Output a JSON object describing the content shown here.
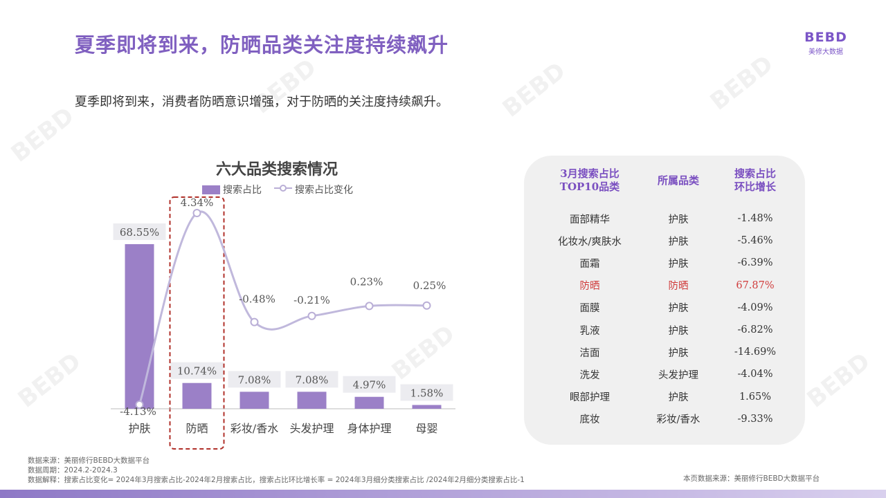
{
  "title": "夏季即将到来，防晒品类关注度持续飙升",
  "logo": {
    "mark": "BEBD",
    "sub": "美修大数据"
  },
  "intro": "夏季即将到来，消费者防晒意识增强，对于防晒的关注度持续飙升。",
  "chart_data": {
    "type": "bar",
    "title": "六大品类搜索情况",
    "categories": [
      "护肤",
      "防晒",
      "彩妆/香水",
      "头发护理",
      "身体护理",
      "母婴"
    ],
    "series": [
      {
        "name": "搜索占比",
        "type": "bar",
        "values": [
          68.55,
          10.74,
          7.08,
          7.08,
          4.97,
          1.58
        ],
        "labels": [
          "68.55%",
          "10.74%",
          "7.08%",
          "7.08%",
          "4.97%",
          "1.58%"
        ]
      },
      {
        "name": "搜索占比变化",
        "type": "line",
        "values": [
          -4.13,
          4.34,
          -0.48,
          -0.21,
          0.23,
          0.25
        ],
        "labels": [
          "-4.13%",
          "4.34%",
          "-0.48%",
          "-0.21%",
          "0.23%",
          "0.25%"
        ]
      }
    ],
    "highlight_category": "防晒",
    "colors": {
      "bar": "#9b80c7",
      "line": "#c0b8dc",
      "highlight_box": "#b0302a"
    }
  },
  "table": {
    "headers": [
      "3月搜索占比\nTOP10品类",
      "所属品类",
      "搜索占比\n环比增长"
    ],
    "rows": [
      [
        "面部精华",
        "护肤",
        "-1.48%"
      ],
      [
        "化妆水/爽肤水",
        "护肤",
        "-5.46%"
      ],
      [
        "面霜",
        "护肤",
        "-6.39%"
      ],
      [
        "防晒",
        "防晒",
        "67.87%"
      ],
      [
        "面膜",
        "护肤",
        "-4.09%"
      ],
      [
        "乳液",
        "护肤",
        "-6.82%"
      ],
      [
        "洁面",
        "护肤",
        "-14.69%"
      ],
      [
        "洗发",
        "头发护理",
        "-4.04%"
      ],
      [
        "眼部护理",
        "护肤",
        "1.65%"
      ],
      [
        "底妆",
        "彩妆/香水",
        "-9.33%"
      ]
    ],
    "highlight_row": 3,
    "highlight_color": "#d03c3c"
  },
  "footer": {
    "source": "数据来源：美丽修行BEBD大数据平台",
    "period": "数据周期：2024.2-2024.3",
    "note": "数据解释：搜索占比变化= 2024年3月搜索占比-2024年2月搜索占比，搜索占比环比增长率 = 2024年3月细分类搜索占比 /2024年2月细分类搜索占比-1",
    "right": "本页数据来源：美丽修行BEBD大数据平台"
  }
}
